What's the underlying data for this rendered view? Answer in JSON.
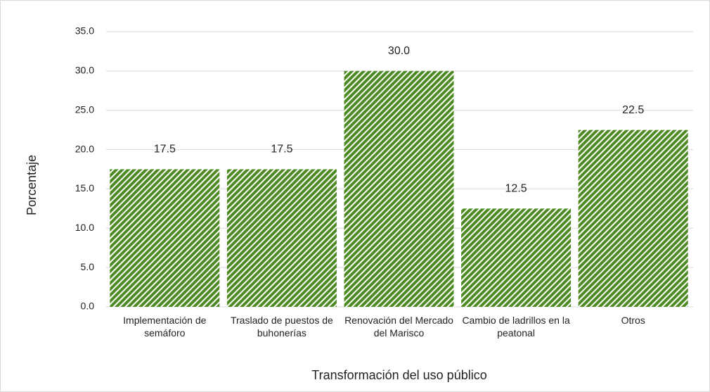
{
  "chart_data": {
    "type": "bar",
    "x_label": "Transformación del uso público",
    "y_label": "Porcentaje",
    "categories": [
      "Implementación de semáforo",
      "Traslado de puestos de buhonerías",
      "Renovación del Mercado del Marisco",
      "Cambio de ladrillos en la peatonal",
      "Otros"
    ],
    "values": [
      17.5,
      17.5,
      30,
      12.5,
      22.5
    ],
    "value_labels": [
      "17.5",
      "17.5",
      "30.0",
      "12.5",
      "22.5"
    ],
    "color": "#4e8a22",
    "ylim": [
      0,
      35
    ],
    "yticks": [
      {
        "value": 0,
        "label": "0.0"
      },
      {
        "value": 5,
        "label": "5.0"
      },
      {
        "value": 10,
        "label": "10.0"
      },
      {
        "value": 15,
        "label": "15.0"
      },
      {
        "value": 20,
        "label": "20.0"
      },
      {
        "value": 25,
        "label": "25.0"
      },
      {
        "value": 30,
        "label": "30.0"
      },
      {
        "value": 35,
        "label": "35.0"
      }
    ],
    "grid": true
  }
}
